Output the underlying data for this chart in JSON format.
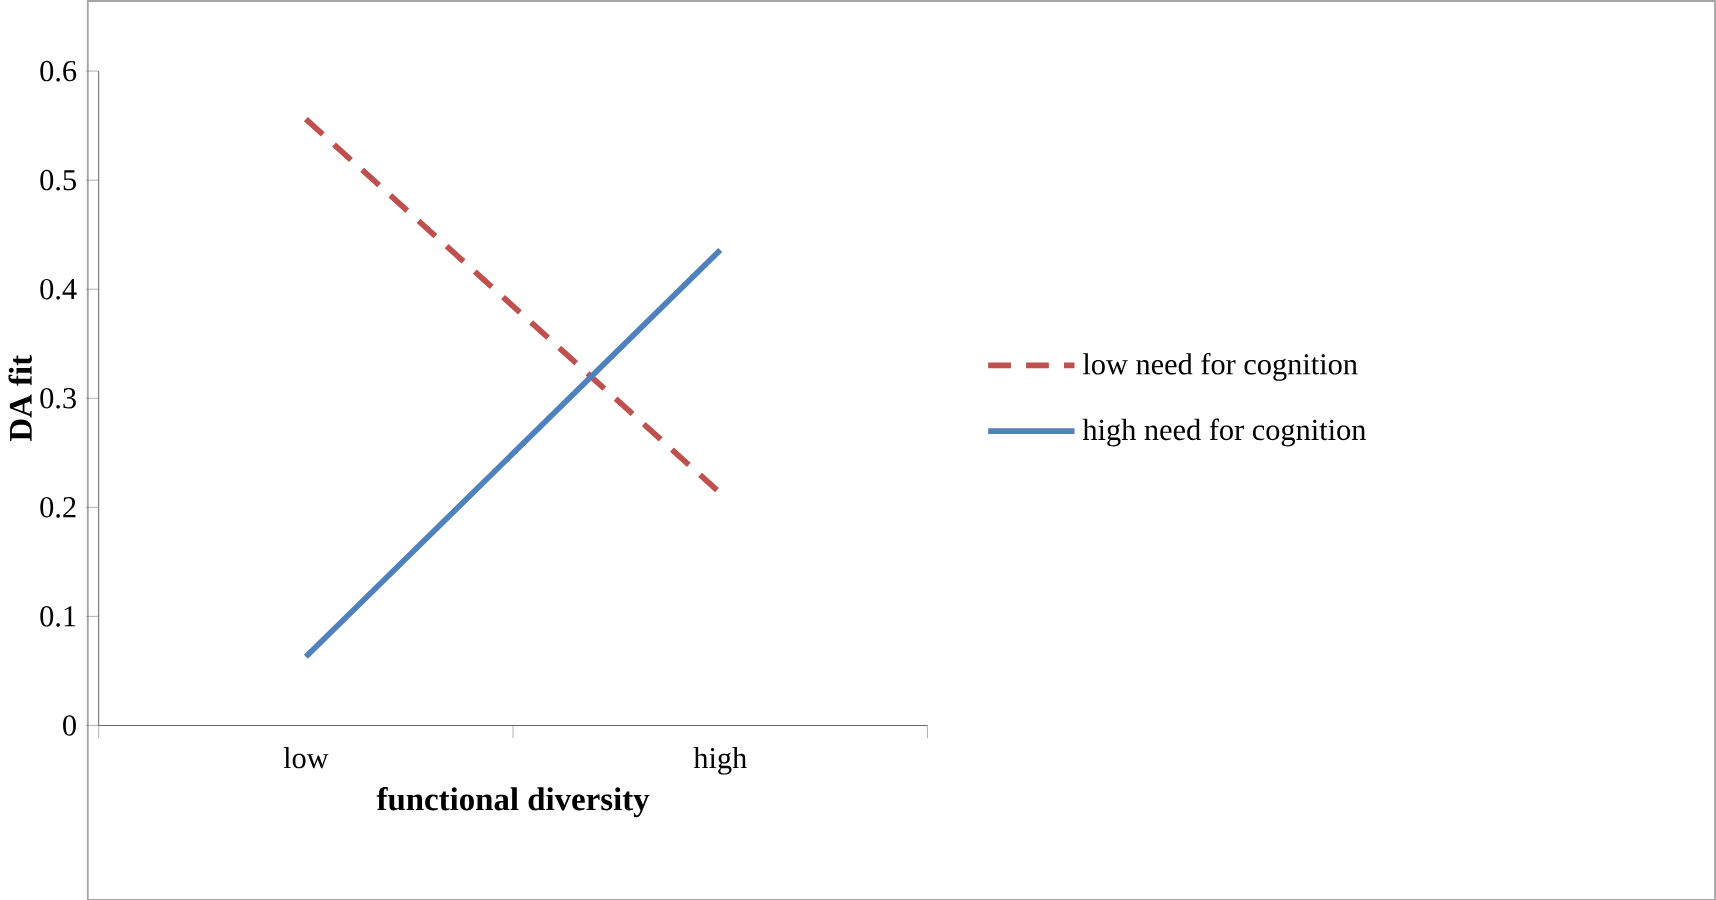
{
  "chart_data": {
    "type": "line",
    "xlabel": "functional diversity",
    "ylabel": "DA fit",
    "categories": [
      "low",
      "high"
    ],
    "ylim": [
      0,
      0.6
    ],
    "yticks": [
      0,
      0.1,
      0.2,
      0.3,
      0.4,
      0.5,
      0.6
    ],
    "grid": false,
    "legend": "right",
    "marker": "none",
    "series": [
      {
        "name": "low need for cognition",
        "color": "#c0504d",
        "line_style": "dashed",
        "values": [
          0.556,
          0.213
        ]
      },
      {
        "name": "high need for cognition",
        "color": "#4f81bd",
        "line_style": "solid",
        "values": [
          0.063,
          0.436
        ]
      }
    ]
  }
}
